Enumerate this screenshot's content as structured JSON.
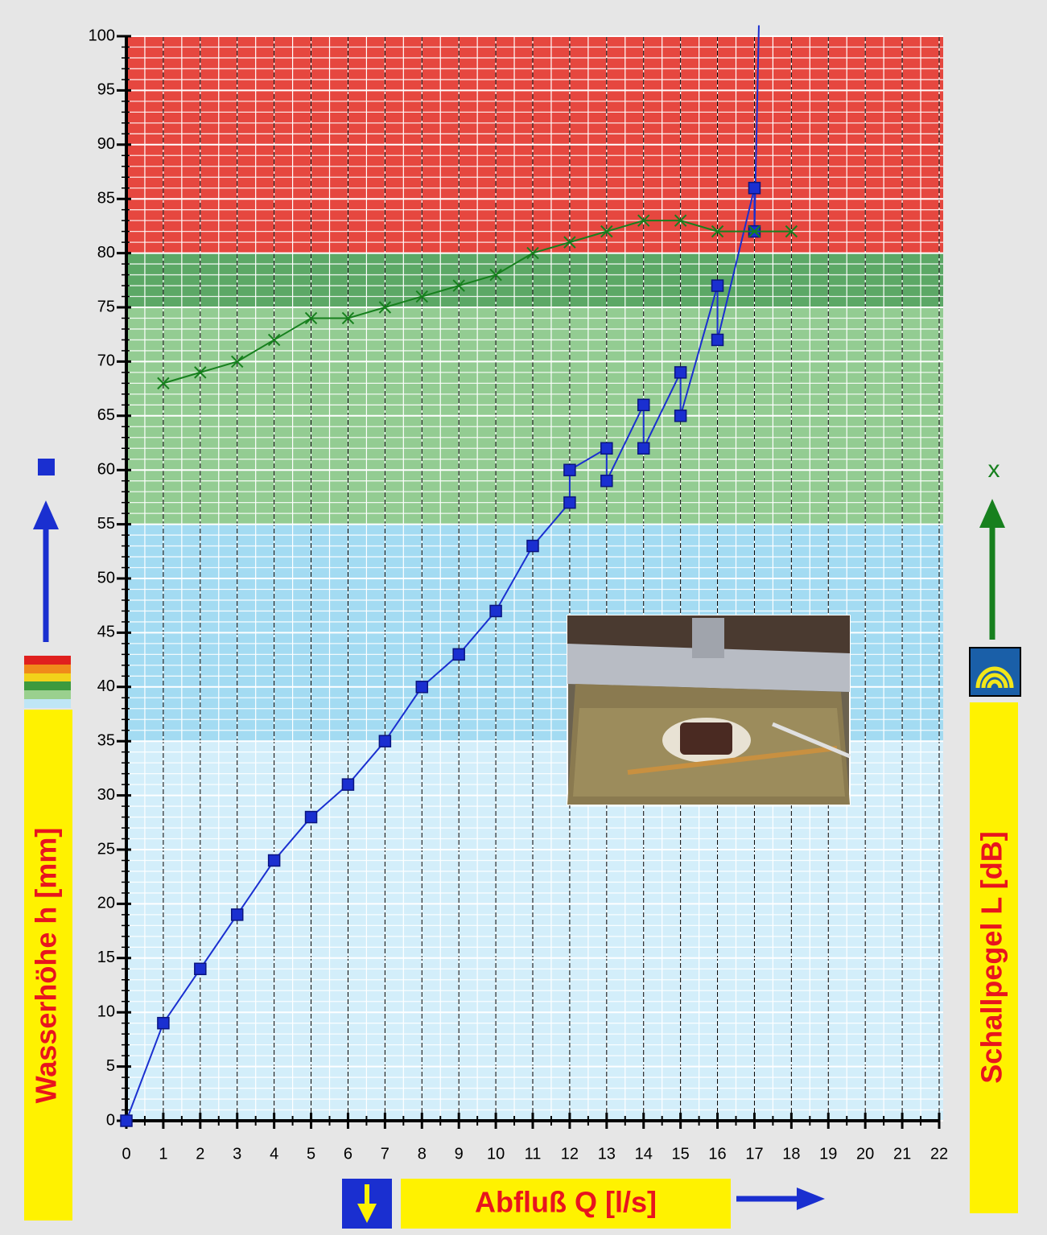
{
  "chart_data": {
    "type": "line",
    "x_title": "Abfluß Q [l/s]",
    "y_title": "Wasserhöhe h [mm]",
    "y2_title": "Schallpegel L [dB]",
    "xlim": [
      0,
      22
    ],
    "ylim": [
      0,
      100
    ],
    "xticks": [
      0,
      1,
      2,
      3,
      4,
      5,
      6,
      7,
      8,
      9,
      10,
      11,
      12,
      13,
      14,
      15,
      16,
      17,
      18,
      19,
      20,
      21,
      22
    ],
    "yticks": [
      0,
      5,
      10,
      15,
      20,
      25,
      30,
      35,
      40,
      45,
      50,
      55,
      60,
      65,
      70,
      75,
      80,
      85,
      90,
      95,
      100
    ],
    "minor_step": {
      "x": 0.5,
      "y": 1
    },
    "grid": true,
    "bands": [
      {
        "from": 0,
        "to": 35,
        "color": "#d3eefa"
      },
      {
        "from": 35,
        "to": 55,
        "color": "#a3dbf2"
      },
      {
        "from": 55,
        "to": 75,
        "color": "#93cc92"
      },
      {
        "from": 75,
        "to": 80,
        "color": "#5ca866"
      },
      {
        "from": 80,
        "to": 100,
        "color": "#e6473f"
      }
    ],
    "series": [
      {
        "color": "#1a2fd0",
        "marker": "square",
        "x": [
          0,
          1,
          2,
          3,
          4,
          5,
          6,
          7,
          8,
          9,
          10,
          11,
          12,
          12,
          13,
          13,
          14,
          14,
          15,
          15,
          16,
          16,
          17,
          17,
          17.12
        ],
        "values": [
          0,
          9,
          14,
          19,
          24,
          28,
          31,
          35,
          40,
          43,
          47,
          53,
          57,
          60,
          62,
          59,
          66,
          62,
          69,
          65,
          77,
          72,
          86,
          82,
          101
        ]
      },
      {
        "color": "#17801e",
        "marker": "x",
        "x": [
          1,
          2,
          3,
          4,
          5,
          6,
          7,
          8,
          9,
          10,
          11,
          12,
          13,
          14,
          15,
          16,
          17,
          18
        ],
        "values": [
          68,
          69,
          70,
          72,
          74,
          74,
          75,
          76,
          77,
          78,
          80,
          81,
          82,
          83,
          83,
          82,
          82,
          82
        ]
      }
    ]
  }
}
